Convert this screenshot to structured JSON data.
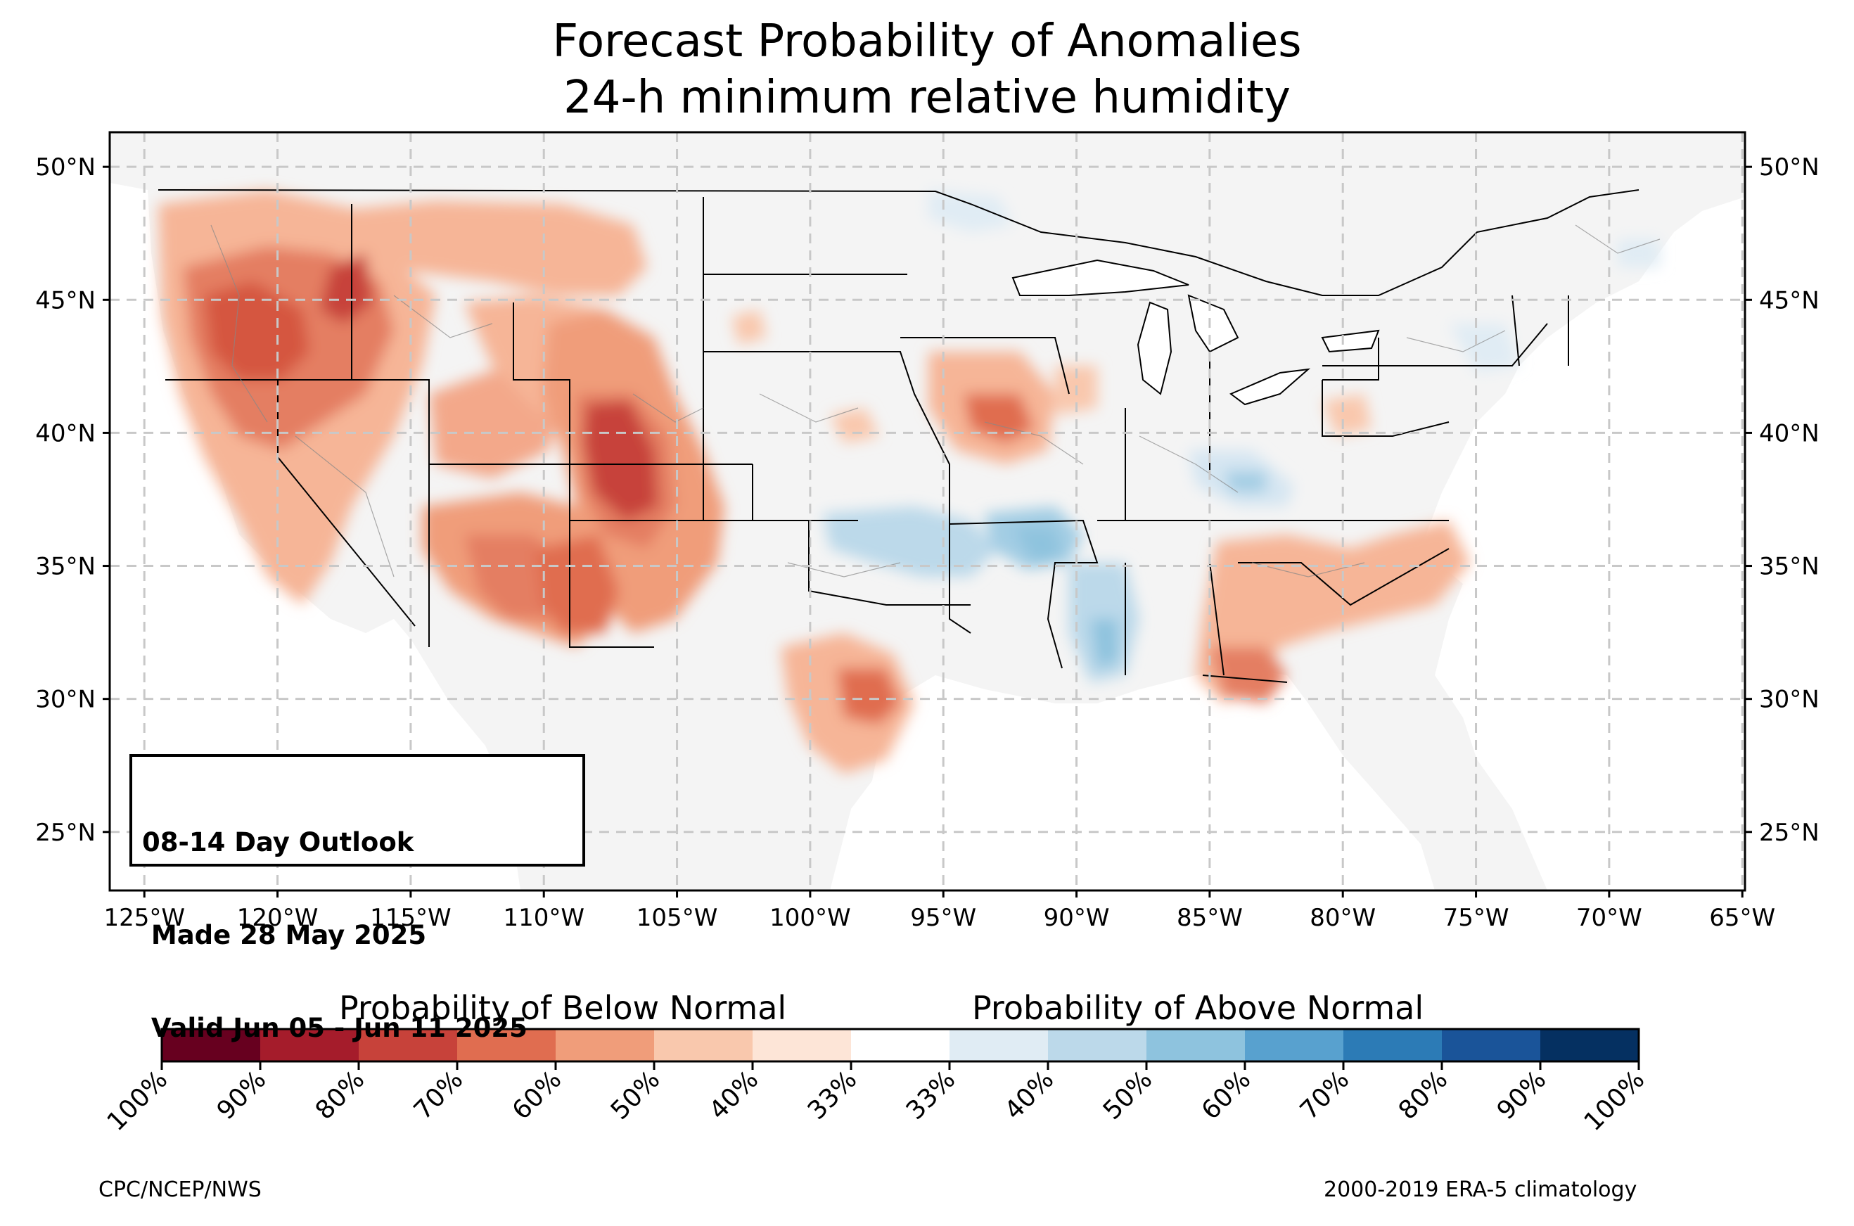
{
  "title_line1": "Forecast Probability of Anomalies",
  "title_line2": "24-h minimum relative humidity",
  "map": {
    "lon_range": [
      -126.3,
      -64.9
    ],
    "lat_range": [
      22.8,
      51.3
    ],
    "lat_ticks": [
      "50°N",
      "45°N",
      "40°N",
      "35°N",
      "30°N",
      "25°N"
    ],
    "lon_ticks": [
      "125°W",
      "120°W",
      "115°W",
      "110°W",
      "105°W",
      "100°W",
      "95°W",
      "90°W",
      "85°W",
      "80°W",
      "75°W",
      "70°W",
      "65°W"
    ],
    "land_color": "#f4f4f4",
    "anomaly_regions": [
      {
        "name": "Pacific Northwest / Great Basin",
        "category": "below",
        "probability": "60-70%",
        "lon": -120.5,
        "lat": 42.5
      },
      {
        "name": "Idaho",
        "category": "below",
        "probability": "70-80%",
        "lon": -116.5,
        "lat": 45.3
      },
      {
        "name": "Colorado",
        "category": "below",
        "probability": "70-80%",
        "lon": -107.0,
        "lat": 38.8
      },
      {
        "name": "Arizona / New Mexico",
        "category": "below",
        "probability": "50-60%",
        "lon": -108.0,
        "lat": 34.5
      },
      {
        "name": "Central Texas",
        "category": "below",
        "probability": "50-60%",
        "lon": -97.0,
        "lat": 30.5
      },
      {
        "name": "Iowa",
        "category": "below",
        "probability": "50-60%",
        "lon": -92.5,
        "lat": 40.5
      },
      {
        "name": "Georgia / Carolinas",
        "category": "below",
        "probability": "40-50%",
        "lon": -82.0,
        "lat": 33.0
      },
      {
        "name": "Oklahoma / Arkansas",
        "category": "above",
        "probability": "40-50%",
        "lon": -94.0,
        "lat": 36.0
      },
      {
        "name": "Ohio Valley",
        "category": "above",
        "probability": "33-40%",
        "lon": -84.5,
        "lat": 38.0
      },
      {
        "name": "Mississippi / Louisiana",
        "category": "above",
        "probability": "40-50%",
        "lon": -89.5,
        "lat": 31.5
      }
    ]
  },
  "info_box": {
    "line1": "08-14 Day Outlook",
    "line2": " Made 28 May 2025",
    "line3": " Valid Jun 05 - Jun 11 2025"
  },
  "colorbar": {
    "below_label": "Probability of Below Normal",
    "above_label": "Probability of Above Normal",
    "tick_labels": [
      "100%",
      "90%",
      "80%",
      "70%",
      "60%",
      "50%",
      "40%",
      "33%",
      "33%",
      "40%",
      "50%",
      "60%",
      "70%",
      "80%",
      "90%",
      "100%"
    ],
    "colors": [
      "#67001f",
      "#a51c2b",
      "#c7423a",
      "#e06d50",
      "#f09d7a",
      "#f9c8ad",
      "#fde5d7",
      "#ffffff",
      "#e0ecf4",
      "#bcd9ea",
      "#8ec3de",
      "#58a1cf",
      "#2c7bb6",
      "#1a5499",
      "#053061"
    ]
  },
  "footer_left": "CPC/NCEP/NWS",
  "footer_right": "2000-2019 ERA-5 climatology"
}
